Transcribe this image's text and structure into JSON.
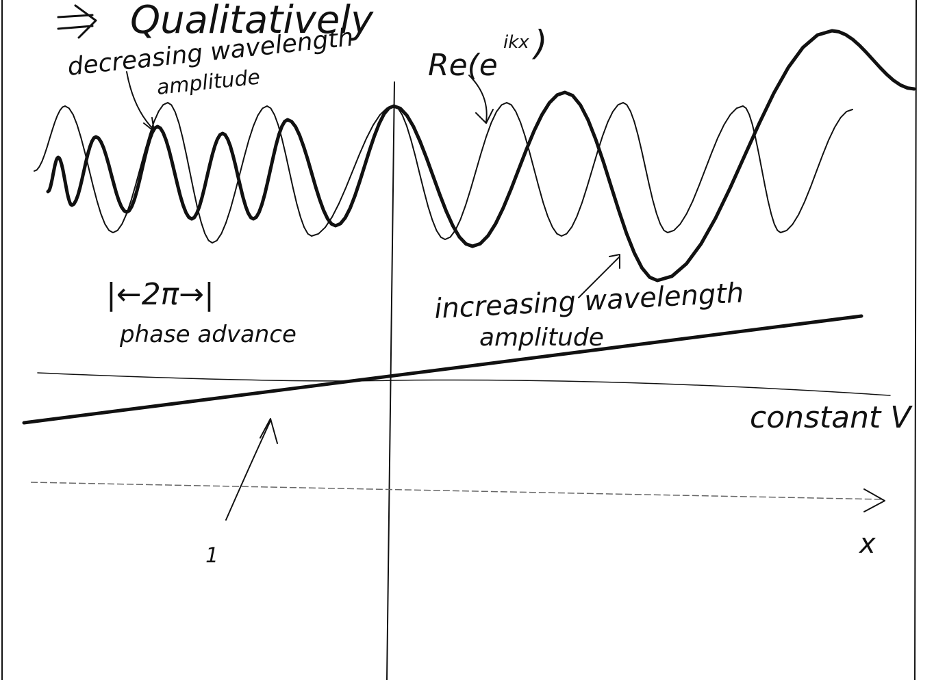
{
  "title": "Qualitatively",
  "annotations": {
    "decreasing": "decreasing wavelength",
    "decreasing_amp": "amplitude",
    "re_label": "Re(e",
    "re_exp": "ikx",
    "re_close": ")",
    "period": "|←2π→|",
    "phase": "phase advance",
    "increasing": "increasing wavelength",
    "increasing_amp": "amplitude",
    "potential": "constant V",
    "axis": "x",
    "one": "1"
  }
}
